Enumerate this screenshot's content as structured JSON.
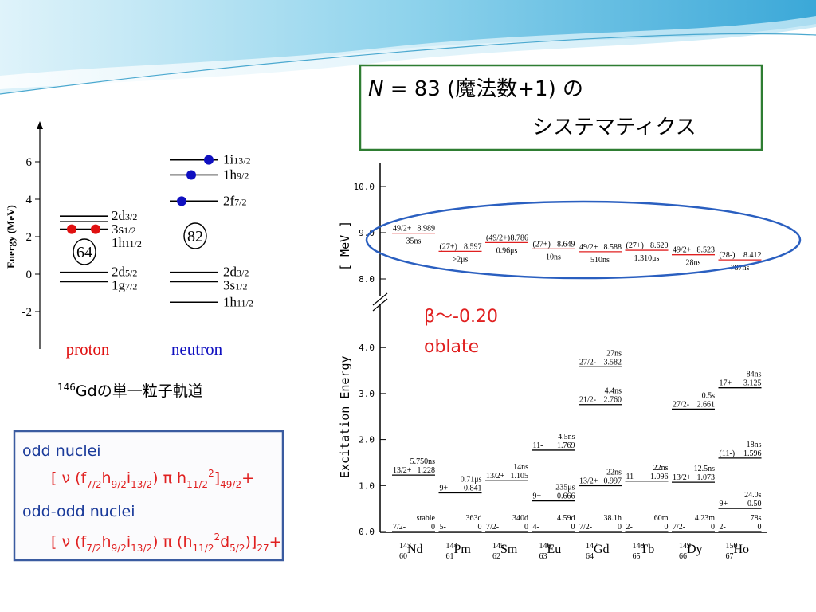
{
  "title": {
    "italic": "N",
    "line1": " = 83 (魔法数+1) の",
    "line2": "システマティクス"
  },
  "beta_note": {
    "line1": "β〜-0.20",
    "line2": "oblate"
  },
  "sp_diagram": {
    "y_axis_label": "Energy (MeV)",
    "yticks": [
      6,
      4,
      2,
      0,
      -2
    ],
    "columns": [
      {
        "name": "proton",
        "magic": "64",
        "levels": [
          {
            "orbital": "2d",
            "j": "3/2",
            "energy": 3.1
          },
          {
            "orbital": "3s",
            "j": "1/2",
            "energy": 2.8
          },
          {
            "orbital": "1h",
            "j": "11/2",
            "energy": 2.4
          },
          {
            "orbital": "2d",
            "j": "5/2",
            "energy": 0.1
          },
          {
            "orbital": "1g",
            "j": "7/2",
            "energy": -0.4
          }
        ]
      },
      {
        "name": "neutron",
        "magic": "82",
        "levels": [
          {
            "orbital": "1i",
            "j": "13/2",
            "energy": 6.1
          },
          {
            "orbital": "1h",
            "j": "9/2",
            "energy": 5.3
          },
          {
            "orbital": "2f",
            "j": "7/2",
            "energy": 3.9
          },
          {
            "orbital": "2d",
            "j": "3/2",
            "energy": 0.1
          },
          {
            "orbital": "3s",
            "j": "1/2",
            "energy": -0.4
          },
          {
            "orbital": "1h",
            "j": "11/2",
            "energy": -1.5
          }
        ]
      }
    ],
    "caption": {
      "mass": "146",
      "text": "Gdの単一粒子軌道"
    }
  },
  "formula_box": {
    "odd_label": "odd nuclei",
    "odd_formula": [
      {
        "t": "[ ν (f"
      },
      {
        "sub": "7/2"
      },
      {
        "t": "h"
      },
      {
        "sub": "9/2"
      },
      {
        "t": "i"
      },
      {
        "sub": "13/2"
      },
      {
        "t": ") π h"
      },
      {
        "sub": "11/2"
      },
      {
        "sup": "2"
      },
      {
        "t": "]"
      },
      {
        "sub": "49/2"
      },
      {
        "t": "+"
      }
    ],
    "oddodd_label": "odd-odd nuclei",
    "oddodd_formula": [
      {
        "t": "[ ν (f"
      },
      {
        "sub": "7/2"
      },
      {
        "t": "h"
      },
      {
        "sub": "9/2"
      },
      {
        "t": "i"
      },
      {
        "sub": "13/2"
      },
      {
        "t": ") π (h"
      },
      {
        "sub": "11/2"
      },
      {
        "sup": "2"
      },
      {
        "t": "d"
      },
      {
        "sub": "5/2"
      },
      {
        "t": ")]"
      },
      {
        "sub": "27"
      },
      {
        "t": "+"
      }
    ]
  },
  "systematics": {
    "y_label": "Excitation Energy",
    "y_unit": "[ MeV ]",
    "upper_ticks": [
      "10.0",
      "9.0",
      "8.0"
    ],
    "lower_ticks": [
      "4.0",
      "3.0",
      "2.0",
      "1.0",
      "0.0"
    ],
    "nuclei": [
      {
        "mass": "143",
        "z": "60",
        "symbol": "Nd",
        "levels": [
          {
            "spin": "49/2+",
            "energy": "8.989",
            "halflife": "35ns"
          },
          {
            "spin": "13/2+",
            "energy": "1.228",
            "halflife": "5.750ns"
          },
          {
            "spin": "7/2-",
            "energy": "0",
            "halflife": "stable"
          }
        ]
      },
      {
        "mass": "144",
        "z": "61",
        "symbol": "Pm",
        "levels": [
          {
            "spin": "(27+)",
            "energy": "8.597",
            "halflife": ">2μs"
          },
          {
            "spin": "9+",
            "energy": "0.841",
            "halflife": "0.71μs"
          },
          {
            "spin": "5-",
            "energy": "0",
            "halflife": "363d"
          }
        ]
      },
      {
        "mass": "145",
        "z": "62",
        "symbol": "Sm",
        "levels": [
          {
            "spin": "(49/2+)",
            "energy": "8.786",
            "halflife": "0.96μs"
          },
          {
            "spin": "13/2+",
            "energy": "1.105",
            "halflife": "14ns"
          },
          {
            "spin": "7/2-",
            "energy": "0",
            "halflife": "340d"
          }
        ]
      },
      {
        "mass": "146",
        "z": "63",
        "symbol": "Eu",
        "levels": [
          {
            "spin": "(27+)",
            "energy": "8.649",
            "halflife": "10ns"
          },
          {
            "spin": "11-",
            "energy": "1.769",
            "halflife": "4.5ns"
          },
          {
            "spin": "9+",
            "energy": "0.666",
            "halflife": "235μs"
          },
          {
            "spin": "4-",
            "energy": "0",
            "halflife": "4.59d"
          }
        ]
      },
      {
        "mass": "147",
        "z": "64",
        "symbol": "Gd",
        "levels": [
          {
            "spin": "49/2+",
            "energy": "8.588",
            "halflife": "510ns"
          },
          {
            "spin": "27/2-",
            "energy": "3.582",
            "halflife": "27ns"
          },
          {
            "spin": "21/2-",
            "energy": "2.760",
            "halflife": "4.4ns"
          },
          {
            "spin": "13/2+",
            "energy": "0.997",
            "halflife": "22ns"
          },
          {
            "spin": "7/2-",
            "energy": "0",
            "halflife": "38.1h"
          }
        ]
      },
      {
        "mass": "148",
        "z": "65",
        "symbol": "Tb",
        "levels": [
          {
            "spin": "(27+)",
            "energy": "8.620",
            "halflife": "1.310μs"
          },
          {
            "spin": "11-",
            "energy": "1.096",
            "halflife": "22ns"
          },
          {
            "spin": "2-",
            "energy": "0",
            "halflife": "60m"
          }
        ]
      },
      {
        "mass": "149",
        "z": "66",
        "symbol": "Dy",
        "levels": [
          {
            "spin": "49/2+",
            "energy": "8.523",
            "halflife": "28ns"
          },
          {
            "spin": "27/2-",
            "energy": "2.661",
            "halflife": "0.5s"
          },
          {
            "spin": "13/2+",
            "energy": "1.073",
            "halflife": "12.5ns"
          },
          {
            "spin": "7/2-",
            "energy": "0",
            "halflife": "4.23m"
          }
        ]
      },
      {
        "mass": "150",
        "z": "67",
        "symbol": "Ho",
        "levels": [
          {
            "spin": "(28-)",
            "energy": "8.412",
            "halflife": "787ns"
          },
          {
            "spin": "17+",
            "energy": "3.125",
            "halflife": "84ns"
          },
          {
            "spin": "(11-)",
            "energy": "1.596",
            "halflife": "18ns"
          },
          {
            "spin": "9+",
            "energy": "0.50",
            "halflife": "24.0s"
          },
          {
            "spin": "2-",
            "energy": "0",
            "halflife": "78s"
          }
        ]
      }
    ]
  }
}
